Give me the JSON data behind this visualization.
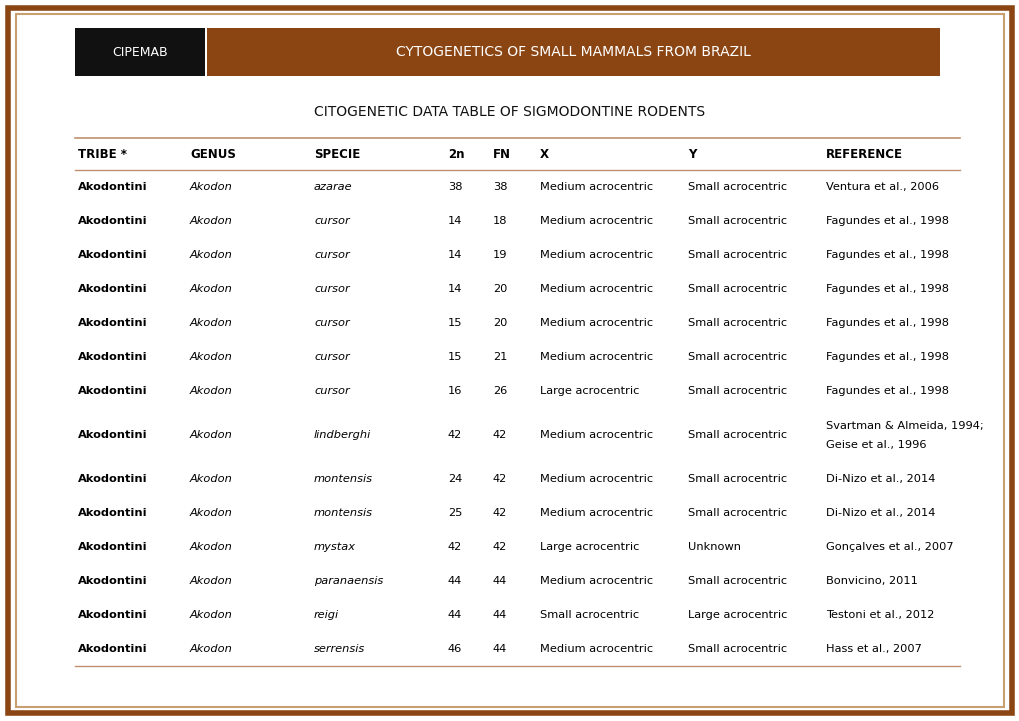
{
  "title_main": "CYTOGENETICS OF SMALL MAMMALS FROM BRAZIL",
  "title_sub": "CITOGENETIC DATA TABLE OF SIGMODONTINE RODENTS",
  "cipemab_label": "CIPEMAB",
  "header": [
    "TRIBE *",
    "GENUS",
    "SPECIE",
    "2n",
    "FN",
    "X",
    "Y",
    "REFERENCE"
  ],
  "rows": [
    [
      "Akodontini",
      "Akodon",
      "azarae",
      "38",
      "38",
      "Medium acrocentric",
      "Small acrocentric",
      "Ventura et al., 2006"
    ],
    [
      "Akodontini",
      "Akodon",
      "cursor",
      "14",
      "18",
      "Medium acrocentric",
      "Small acrocentric",
      "Fagundes et al., 1998"
    ],
    [
      "Akodontini",
      "Akodon",
      "cursor",
      "14",
      "19",
      "Medium acrocentric",
      "Small acrocentric",
      "Fagundes et al., 1998"
    ],
    [
      "Akodontini",
      "Akodon",
      "cursor",
      "14",
      "20",
      "Medium acrocentric",
      "Small acrocentric",
      "Fagundes et al., 1998"
    ],
    [
      "Akodontini",
      "Akodon",
      "cursor",
      "15",
      "20",
      "Medium acrocentric",
      "Small acrocentric",
      "Fagundes et al., 1998"
    ],
    [
      "Akodontini",
      "Akodon",
      "cursor",
      "15",
      "21",
      "Medium acrocentric",
      "Small acrocentric",
      "Fagundes et al., 1998"
    ],
    [
      "Akodontini",
      "Akodon",
      "cursor",
      "16",
      "26",
      "Large acrocentric",
      "Small acrocentric",
      "Fagundes et al., 1998"
    ],
    [
      "Akodontini",
      "Akodon",
      "lindberghi",
      "42",
      "42",
      "Medium acrocentric",
      "Small acrocentric",
      "Svartman & Almeida, 1994;\nGeise et al., 1996"
    ],
    [
      "Akodontini",
      "Akodon",
      "montensis",
      "24",
      "42",
      "Medium acrocentric",
      "Small acrocentric",
      "Di-Nizo et al., 2014"
    ],
    [
      "Akodontini",
      "Akodon",
      "montensis",
      "25",
      "42",
      "Medium acrocentric",
      "Small acrocentric",
      "Di-Nizo et al., 2014"
    ],
    [
      "Akodontini",
      "Akodon",
      "mystax",
      "42",
      "42",
      "Large acrocentric",
      "Unknown",
      "Gonçalves et al., 2007"
    ],
    [
      "Akodontini",
      "Akodon",
      "paranaensis",
      "44",
      "44",
      "Medium acrocentric",
      "Small acrocentric",
      "Bonvicino, 2011"
    ],
    [
      "Akodontini",
      "Akodon",
      "reigi",
      "44",
      "44",
      "Small acrocentric",
      "Large acrocentric",
      "Testoni et al., 2012"
    ],
    [
      "Akodontini",
      "Akodon",
      "serrensis",
      "46",
      "44",
      "Medium acrocentric",
      "Small acrocentric",
      "Hass et al., 2007"
    ]
  ],
  "shaded_rows": [
    0,
    2,
    4,
    6,
    8,
    10,
    12
  ],
  "colors": {
    "outer_border": "#8B4513",
    "inner_border": "#C8A070",
    "header_bar_brown": "#8B4513",
    "header_bar_black": "#111111",
    "header_text_white": "#FFFFFF",
    "row_shade": "#F5DEDE",
    "row_white": "#FFFFFF",
    "tribe_text_bold": "#000000",
    "italic_text": "#000000",
    "normal_text": "#000000",
    "header_row_text": "#000000",
    "line_color": "#C0906070",
    "background": "#FFFFFF"
  },
  "figsize": [
    10.2,
    7.21
  ],
  "dpi": 100
}
